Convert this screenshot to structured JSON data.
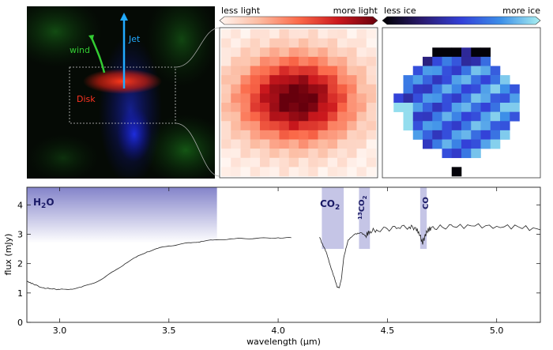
{
  "panels": {
    "image": {
      "labels": {
        "wind": "wind",
        "jet": "Jet",
        "disk": "Disk"
      },
      "colors": {
        "wind": "#33cc33",
        "jet": "#22aaff",
        "disk": "#ff3322"
      }
    },
    "light_map": {
      "colorbar_left": "less light",
      "colorbar_right": "more light",
      "colorbar_colors": [
        "#fff5f0",
        "#fcbba1",
        "#fb6a4a",
        "#cb181d",
        "#67000d"
      ]
    },
    "ice_map": {
      "colorbar_left": "less ice",
      "colorbar_right": "more ice",
      "colorbar_colors": [
        "#000000",
        "#2a1a6e",
        "#3340d8",
        "#3d8fe8",
        "#a9f0f0"
      ]
    }
  },
  "chart_data": {
    "type": "line",
    "xlabel": "wavelength (μm)",
    "ylabel": "flux (mJy)",
    "xlim": [
      2.85,
      5.2
    ],
    "ylim": [
      0,
      4.6
    ],
    "xticks": [
      3.0,
      3.5,
      4.0,
      4.5,
      5.0
    ],
    "xtick_labels": [
      "3.0",
      "3.5",
      "4.0",
      "4.5",
      "5.0"
    ],
    "yticks": [
      0,
      1,
      2,
      3,
      4
    ],
    "ytick_labels": [
      "0",
      "1",
      "2",
      "3",
      "4"
    ],
    "grid": false,
    "bands": [
      {
        "label": "H2O",
        "x0": 2.85,
        "x1": 3.72,
        "style": "gradient"
      },
      {
        "label": "CO2",
        "x0": 4.2,
        "x1": 4.3,
        "style": "solid"
      },
      {
        "label": "13CO2",
        "x0": 4.37,
        "x1": 4.42,
        "style": "solid"
      },
      {
        "label": "CO",
        "x0": 4.65,
        "x1": 4.68,
        "style": "solid"
      }
    ],
    "band_color": "#5a5ab8",
    "series": [
      {
        "segments": [
          [
            [
              2.85,
              1.4
            ],
            [
              2.88,
              1.3
            ],
            [
              2.92,
              1.18
            ],
            [
              2.96,
              1.14
            ],
            [
              3.0,
              1.12
            ],
            [
              3.05,
              1.13
            ],
            [
              3.1,
              1.2
            ],
            [
              3.15,
              1.32
            ],
            [
              3.2,
              1.5
            ],
            [
              3.25,
              1.75
            ],
            [
              3.3,
              2.0
            ],
            [
              3.35,
              2.22
            ],
            [
              3.4,
              2.4
            ],
            [
              3.45,
              2.52
            ],
            [
              3.5,
              2.6
            ],
            [
              3.55,
              2.66
            ],
            [
              3.6,
              2.71
            ],
            [
              3.65,
              2.76
            ],
            [
              3.7,
              2.8
            ],
            [
              3.8,
              2.85
            ],
            [
              3.9,
              2.86
            ],
            [
              4.0,
              2.88
            ],
            [
              4.06,
              2.88
            ]
          ],
          [
            [
              4.19,
              2.9
            ],
            [
              4.2,
              2.7
            ],
            [
              4.22,
              2.4
            ],
            [
              4.24,
              1.9
            ],
            [
              4.26,
              1.45
            ],
            [
              4.27,
              1.2
            ],
            [
              4.28,
              1.18
            ],
            [
              4.29,
              1.5
            ],
            [
              4.3,
              2.2
            ],
            [
              4.32,
              2.8
            ],
            [
              4.35,
              3.0
            ],
            [
              4.38,
              3.05
            ],
            [
              4.4,
              2.95
            ],
            [
              4.42,
              3.1
            ],
            [
              4.45,
              3.15
            ],
            [
              4.5,
              3.18
            ],
            [
              4.55,
              3.22
            ],
            [
              4.6,
              3.25
            ],
            [
              4.63,
              3.22
            ],
            [
              4.65,
              2.95
            ],
            [
              4.66,
              2.7
            ],
            [
              4.67,
              2.88
            ],
            [
              4.68,
              3.1
            ],
            [
              4.7,
              3.22
            ],
            [
              4.75,
              3.25
            ],
            [
              4.8,
              3.26
            ],
            [
              4.9,
              3.28
            ],
            [
              5.0,
              3.27
            ],
            [
              5.1,
              3.25
            ],
            [
              5.2,
              3.15
            ]
          ]
        ],
        "color": "#222222"
      }
    ]
  }
}
